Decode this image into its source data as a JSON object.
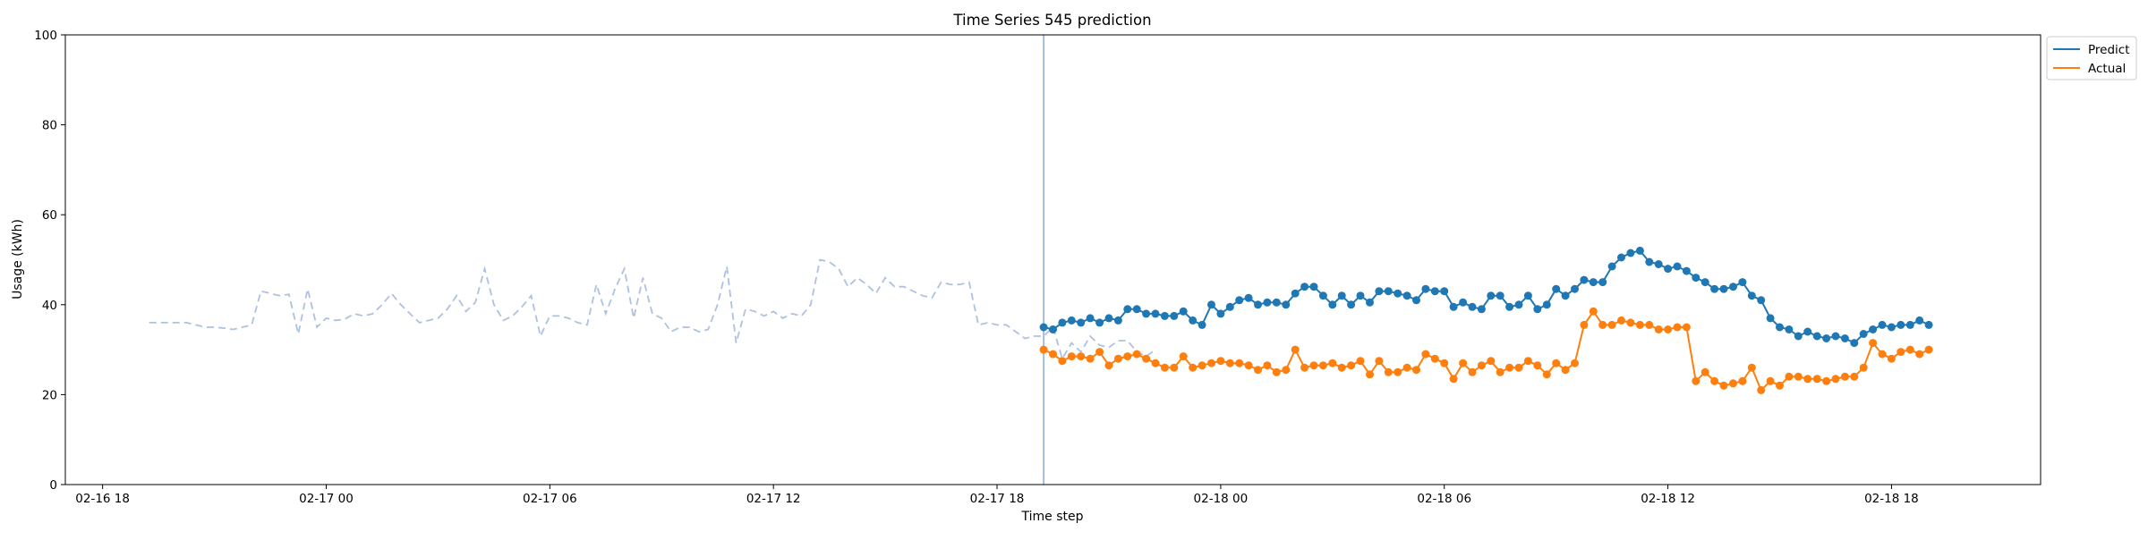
{
  "chart_data": {
    "type": "line",
    "title": "Time Series 545 prediction",
    "xlabel": "Time step",
    "ylabel": "Usage (kWh)",
    "ylim": [
      0,
      100
    ],
    "xlim": [
      "2018-02-16T17:00",
      "2018-02-18T22:00"
    ],
    "y_ticks": [
      0,
      20,
      40,
      60,
      80,
      100
    ],
    "x_ticks": [
      {
        "t": "2018-02-16T18:00",
        "label": "02-16 18"
      },
      {
        "t": "2018-02-17T00:00",
        "label": "02-17 00"
      },
      {
        "t": "2018-02-17T06:00",
        "label": "02-17 06"
      },
      {
        "t": "2018-02-17T12:00",
        "label": "02-17 12"
      },
      {
        "t": "2018-02-17T18:00",
        "label": "02-17 18"
      },
      {
        "t": "2018-02-18T00:00",
        "label": "02-18 00"
      },
      {
        "t": "2018-02-18T06:00",
        "label": "02-18 06"
      },
      {
        "t": "2018-02-18T12:00",
        "label": "02-18 12"
      },
      {
        "t": "2018-02-18T18:00",
        "label": "02-18 18"
      }
    ],
    "grid": false,
    "legend_position": "outside top-right",
    "forecast_start": "2018-02-17T19:15",
    "history": {
      "start": "2018-02-16T19:15",
      "step_minutes": 15,
      "color": "#aec1e0",
      "style": "dashed",
      "values": [
        36,
        36,
        36,
        36,
        36,
        35.5,
        35,
        35,
        34.8,
        34.5,
        35,
        35.5,
        43,
        42.5,
        42,
        42.3,
        33.5,
        43.5,
        35,
        37,
        36.5,
        36.8,
        38,
        37.5,
        38,
        40,
        42.5,
        40,
        38,
        36,
        36.5,
        37,
        39,
        42,
        38.5,
        40.5,
        48,
        40,
        36.5,
        37.5,
        39.5,
        42,
        33,
        37.5,
        37.5,
        37,
        36,
        35.5,
        44.5,
        38,
        43.5,
        48,
        37,
        46,
        38,
        37,
        34,
        35,
        35,
        34,
        34.5,
        40,
        48.5,
        31.5,
        39,
        38.5,
        37.5,
        38.5,
        37,
        38,
        37.5,
        40,
        50,
        49.5,
        48,
        44,
        46,
        44.5,
        42.5,
        46,
        44,
        44,
        43,
        42,
        41.5,
        45,
        44.5,
        44.5,
        45,
        35.5,
        36,
        35.5,
        35.5,
        34,
        32.5,
        33,
        33,
        35,
        28,
        31.5,
        29.5,
        33,
        31,
        30.5,
        32,
        32,
        29.5,
        28.5,
        30
      ]
    },
    "series": [
      {
        "name": "Predict",
        "color": "#1f77b4",
        "start": "2018-02-17T19:15",
        "step_minutes": 15,
        "values": [
          35,
          34.5,
          36,
          36.5,
          36,
          37,
          36,
          37,
          36.5,
          39,
          39,
          38,
          38,
          37.5,
          37.5,
          38.5,
          36.5,
          35.5,
          40,
          38,
          39.5,
          41,
          41.5,
          40,
          40.5,
          40.5,
          40,
          42.5,
          44,
          44,
          42,
          40,
          42,
          40,
          42,
          40.5,
          43,
          43,
          42.5,
          42,
          41,
          43.5,
          43,
          43,
          39.5,
          40.5,
          39.5,
          39,
          42,
          42,
          39.5,
          40,
          42,
          39,
          40,
          43.5,
          42,
          43.5,
          45.5,
          45,
          45,
          48.5,
          50.5,
          51.5,
          52,
          49.5,
          49,
          48,
          48.5,
          47.5,
          46,
          45,
          43.5,
          43.5,
          44,
          45,
          42,
          41,
          37,
          35,
          34.5,
          33,
          34,
          33,
          32.5,
          33,
          32.5,
          31.5,
          33.5,
          34.5,
          35.5,
          35,
          35.5,
          35.5,
          36.5,
          35.5
        ]
      },
      {
        "name": "Actual",
        "color": "#ff7f0e",
        "start": "2018-02-17T19:15",
        "step_minutes": 15,
        "values": [
          30,
          29,
          27.5,
          28.5,
          28.5,
          28,
          29.5,
          26.5,
          28,
          28.5,
          29,
          28,
          27,
          26,
          26,
          28.5,
          26,
          26.5,
          27,
          27.5,
          27,
          27,
          26.5,
          25.5,
          26.5,
          25,
          25.5,
          30,
          26,
          26.5,
          26.5,
          27,
          26,
          26.5,
          27.5,
          24.5,
          27.5,
          25,
          25,
          26,
          25.5,
          29,
          28,
          27,
          23.5,
          27,
          25,
          26.5,
          27.5,
          25,
          26,
          26,
          27.5,
          26.5,
          24.5,
          27,
          25.5,
          27,
          35.5,
          38.5,
          35.5,
          35.5,
          36.5,
          36,
          35.5,
          35.5,
          34.5,
          34.5,
          35,
          35,
          23,
          25,
          23,
          22,
          22.5,
          23,
          26,
          21,
          23,
          22,
          24,
          24,
          23.5,
          23.5,
          23,
          23.5,
          24,
          24,
          26,
          31.5,
          29,
          28,
          29.5,
          30,
          29,
          30
        ]
      }
    ]
  }
}
